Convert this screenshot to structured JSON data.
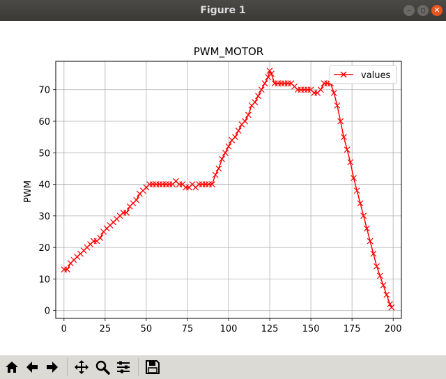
{
  "window": {
    "title": "Figure 1"
  },
  "window_controls": {
    "minimize": "–",
    "maximize": "▫",
    "close": "✕"
  },
  "toolbar": {
    "buttons": [
      {
        "name": "home-button",
        "icon": "home-icon"
      },
      {
        "name": "back-button",
        "icon": "arrow-left-icon"
      },
      {
        "name": "forward-button",
        "icon": "arrow-right-icon"
      },
      {
        "name": "pan-button",
        "icon": "move-icon"
      },
      {
        "name": "zoom-button",
        "icon": "zoom-icon"
      },
      {
        "name": "configure-subplots-button",
        "icon": "sliders-icon"
      },
      {
        "name": "save-button",
        "icon": "save-icon"
      }
    ]
  },
  "chart_data": {
    "type": "line",
    "title": "PWM_MOTOR",
    "xlabel": "",
    "ylabel": "PWM",
    "xlim": [
      -5,
      205
    ],
    "ylim": [
      -2.5,
      79
    ],
    "xticks": [
      0,
      25,
      50,
      75,
      100,
      125,
      150,
      175,
      200
    ],
    "yticks": [
      0,
      10,
      20,
      30,
      40,
      50,
      60,
      70
    ],
    "grid": true,
    "legend_position": "top-right",
    "marker": "x",
    "color": "#ff0000",
    "series": [
      {
        "name": "values",
        "x": [
          0,
          2,
          4,
          6,
          8,
          10,
          12,
          14,
          16,
          18,
          20,
          22,
          24,
          26,
          28,
          30,
          32,
          34,
          36,
          38,
          40,
          42,
          44,
          46,
          48,
          50,
          52,
          54,
          56,
          58,
          60,
          62,
          64,
          66,
          68,
          70,
          72,
          74,
          76,
          78,
          80,
          82,
          84,
          86,
          88,
          90,
          92,
          94,
          96,
          98,
          100,
          102,
          104,
          106,
          108,
          110,
          112,
          114,
          116,
          118,
          120,
          122,
          124,
          125,
          126,
          128,
          130,
          132,
          134,
          136,
          138,
          140,
          142,
          144,
          146,
          148,
          150,
          152,
          154,
          156,
          158,
          160,
          162,
          164,
          166,
          168,
          170,
          172,
          174,
          176,
          178,
          180,
          182,
          184,
          186,
          188,
          190,
          192,
          194,
          196,
          198,
          199
        ],
        "y": [
          13,
          13,
          15,
          16,
          17,
          18,
          19,
          20,
          21,
          22,
          22,
          23,
          25,
          26,
          27,
          28,
          29,
          30,
          31,
          31,
          33,
          34,
          35,
          37,
          38,
          39,
          40,
          40,
          40,
          40,
          40,
          40,
          40,
          40,
          41,
          40,
          40,
          39,
          39,
          40,
          39,
          40,
          40,
          40,
          40,
          40,
          43,
          45,
          48,
          50,
          52,
          54,
          55,
          57,
          59,
          60,
          62,
          65,
          66,
          68,
          70,
          72,
          74,
          76,
          75,
          72,
          72,
          72,
          72,
          72,
          72,
          71,
          70,
          70,
          70,
          70,
          70,
          69,
          69,
          70,
          72,
          72,
          72,
          69,
          65,
          60,
          55,
          51,
          47,
          42,
          38,
          34,
          30,
          26,
          22,
          18,
          14,
          11,
          8,
          5,
          2,
          1
        ]
      }
    ]
  }
}
